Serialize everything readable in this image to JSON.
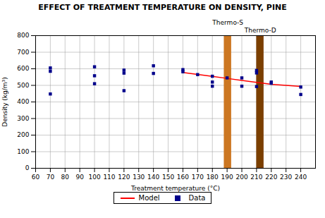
{
  "chart_data": {
    "type": "scatter",
    "title": "EFFECT OF TREATMENT TEMPERATURE ON DENSITY, PINE",
    "xlabel": "Treatment temperature (°C)",
    "ylabel": "Density (kg/m³)",
    "xlim": [
      60,
      250
    ],
    "ylim": [
      0,
      800
    ],
    "xticks": [
      60,
      70,
      80,
      90,
      100,
      110,
      120,
      130,
      140,
      150,
      160,
      170,
      180,
      190,
      200,
      210,
      220,
      230,
      240
    ],
    "yticks": [
      0,
      100,
      200,
      300,
      400,
      500,
      600,
      700,
      800
    ],
    "grid": true,
    "legend": "bottom",
    "series": [
      {
        "name": "Model",
        "type": "line",
        "color": "#ff0000",
        "x": [
          160,
          170,
          180,
          190,
          200,
          210,
          220,
          230,
          240
        ],
        "values": [
          578,
          566,
          554,
          542,
          530,
          518,
          506,
          500,
          494
        ]
      },
      {
        "name": "Data",
        "type": "scatter",
        "marker": "square",
        "color": "#00008b",
        "x": [
          70,
          70,
          70,
          100,
          100,
          100,
          120,
          120,
          120,
          140,
          140,
          160,
          160,
          170,
          180,
          180,
          180,
          190,
          200,
          200,
          210,
          210,
          210,
          220,
          220,
          240,
          240
        ],
        "values": [
          605,
          585,
          448,
          612,
          558,
          510,
          592,
          574,
          468,
          618,
          572,
          595,
          582,
          565,
          555,
          520,
          495,
          545,
          545,
          495,
          590,
          575,
          493,
          520,
          513,
          490,
          445
        ]
      }
    ],
    "annotations": [
      {
        "label": "Thermo-S",
        "x1": 188,
        "x2": 193,
        "color": "#cc7722"
      },
      {
        "label": "Thermo-D",
        "x1": 210,
        "x2": 215,
        "color": "#7B3F00"
      }
    ]
  }
}
